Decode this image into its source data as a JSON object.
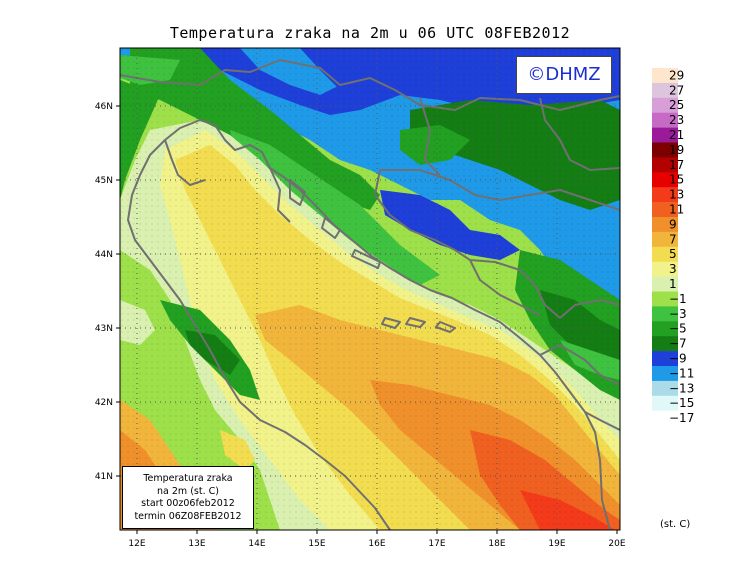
{
  "title": "Temperatura zraka na 2m u 06 UTC 08FEB2012",
  "credit": "©DHMZ",
  "info_box": {
    "line1": "Temperatura zraka",
    "line2": "na 2m (st. C)",
    "line3": "start 00z06feb2012",
    "line4": "termin 06Z08FEB2012"
  },
  "axes": {
    "x_ticks": [
      "12E",
      "13E",
      "14E",
      "15E",
      "16E",
      "17E",
      "18E",
      "19E",
      "20E"
    ],
    "y_ticks": [
      "46N",
      "45N",
      "44N",
      "43N",
      "42N",
      "41N"
    ]
  },
  "legend": {
    "unit": "(st. C)",
    "labels": [
      "29",
      "27",
      "25",
      "23",
      "21",
      "19",
      "17",
      "15",
      "13",
      "11",
      "9",
      "7",
      "5",
      "3",
      "1",
      "−1",
      "−3",
      "−5",
      "−7",
      "−9",
      "−11",
      "−13",
      "−15",
      "−17"
    ],
    "colors": [
      "#fde6cc",
      "#ddc6dd",
      "#d79ed7",
      "#c66ac6",
      "#9a1a9a",
      "#7d0000",
      "#b30000",
      "#e80000",
      "#f33a1a",
      "#f06020",
      "#f0902a",
      "#f2b53c",
      "#f2dc50",
      "#f2f28a",
      "#d9f0b0",
      "#9ee04a",
      "#3fc23f",
      "#22a022",
      "#147d14",
      "#1f3fd9",
      "#1f9ae8",
      "#a9dce8",
      "#e0f8f8",
      "#ffffff"
    ]
  }
}
